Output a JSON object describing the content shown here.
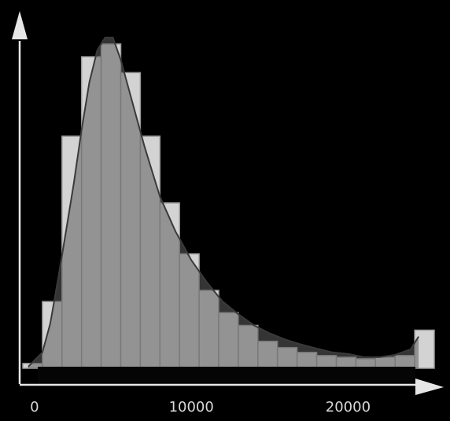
{
  "colors": {
    "background": "#000000",
    "bar_fill": "#d3d3d3",
    "bar_edge": "#9a9a9a",
    "curve_fill": "#5e5e5e",
    "curve_stroke": "#3a3a3a",
    "axis": "#e6e6e6",
    "baseline_band": "#050505"
  },
  "chart_data": {
    "type": "bar",
    "subtype": "histogram-with-density-curve",
    "title": "",
    "xlabel": "",
    "ylabel": "",
    "grid": false,
    "legend": "none",
    "xlim": [
      -1200,
      25500
    ],
    "ylim": [
      0,
      100
    ],
    "x_ticks": [
      {
        "value": 0,
        "label": "0"
      },
      {
        "value": 10000,
        "label": "10000"
      },
      {
        "value": 20000,
        "label": "20000"
      }
    ],
    "bin_width": 1250,
    "bins": [
      {
        "x0": -750,
        "value": 1.5
      },
      {
        "x0": 500,
        "value": 21
      },
      {
        "x0": 1750,
        "value": 73
      },
      {
        "x0": 3000,
        "value": 98
      },
      {
        "x0": 4250,
        "value": 102
      },
      {
        "x0": 5500,
        "value": 93
      },
      {
        "x0": 6750,
        "value": 73
      },
      {
        "x0": 8000,
        "value": 52
      },
      {
        "x0": 9250,
        "value": 36
      },
      {
        "x0": 10500,
        "value": 24.5
      },
      {
        "x0": 11750,
        "value": 17.5
      },
      {
        "x0": 13000,
        "value": 13.5
      },
      {
        "x0": 14250,
        "value": 8.5
      },
      {
        "x0": 15500,
        "value": 6.5
      },
      {
        "x0": 16750,
        "value": 5
      },
      {
        "x0": 18000,
        "value": 4
      },
      {
        "x0": 19250,
        "value": 3.5
      },
      {
        "x0": 20500,
        "value": 3
      },
      {
        "x0": 21750,
        "value": 3.5
      },
      {
        "x0": 23000,
        "value": 4
      },
      {
        "x0": 24250,
        "value": 12
      }
    ],
    "density_curve": {
      "x": [
        -400,
        500,
        1000,
        1500,
        2000,
        2500,
        3000,
        3500,
        4000,
        4500,
        5000,
        5500,
        6000,
        6500,
        7000,
        7500,
        8000,
        9000,
        10000,
        11000,
        12000,
        13000,
        14000,
        15000,
        16000,
        17000,
        18000,
        19000,
        20000,
        21000,
        22000,
        23000,
        24000,
        24500
      ],
      "y": [
        0.5,
        5,
        14,
        28,
        43,
        58,
        75,
        90,
        100,
        104,
        104,
        97,
        88,
        79,
        70,
        62,
        54,
        43,
        34,
        27,
        21,
        17,
        13.5,
        11,
        9,
        7.5,
        6.2,
        5,
        4.5,
        3.5,
        3.5,
        4.2,
        6,
        10
      ]
    }
  }
}
